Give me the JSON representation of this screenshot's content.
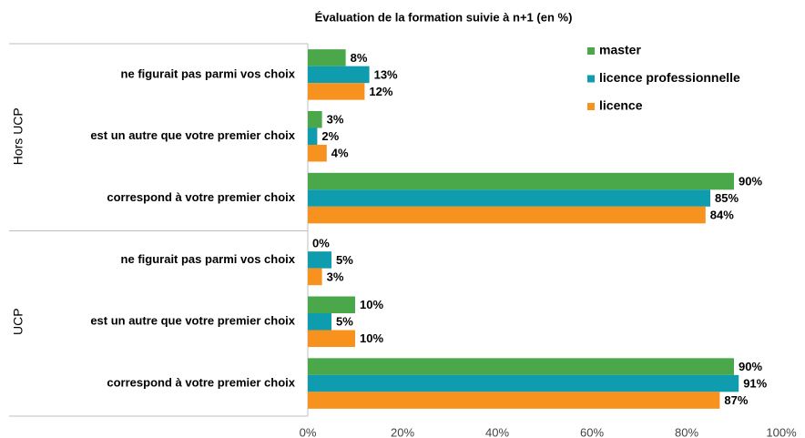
{
  "chart_data": {
    "type": "bar",
    "orientation": "horizontal",
    "title": "Évaluation  de la formation suivie à n+1 (en %)",
    "groups": [
      "Hors UCP",
      "UCP"
    ],
    "categories": [
      "ne figurait pas parmi vos choix",
      "est un autre que votre premier choix",
      "correspond à votre premier choix",
      "ne figurait pas parmi vos choix",
      "est un autre que votre premier choix",
      "correspond à votre premier choix"
    ],
    "series": [
      {
        "name": "master",
        "color": "#4aa84a",
        "values": [
          8,
          3,
          90,
          0,
          10,
          90
        ],
        "value_labels": [
          "8%",
          "3%",
          "90%",
          "0%",
          "10%",
          "90%"
        ]
      },
      {
        "name": "licence professionnelle",
        "color": "#0f9cae",
        "values": [
          13,
          2,
          85,
          5,
          5,
          91
        ],
        "value_labels": [
          "13%",
          "2%",
          "85%",
          "5%",
          "5%",
          "91%"
        ]
      },
      {
        "name": "licence",
        "color": "#f7921e",
        "values": [
          12,
          4,
          84,
          3,
          10,
          87
        ],
        "value_labels": [
          "12%",
          "4%",
          "84%",
          "3%",
          "10%",
          "87%"
        ]
      }
    ],
    "xlim": [
      0,
      100
    ],
    "xticks": [
      {
        "value": 0,
        "label": "0%"
      },
      {
        "value": 20,
        "label": "20%"
      },
      {
        "value": 40,
        "label": "40%"
      },
      {
        "value": 60,
        "label": "60%"
      },
      {
        "value": 80,
        "label": "80%"
      },
      {
        "value": 100,
        "label": "100%"
      }
    ],
    "legend": "top-right"
  }
}
